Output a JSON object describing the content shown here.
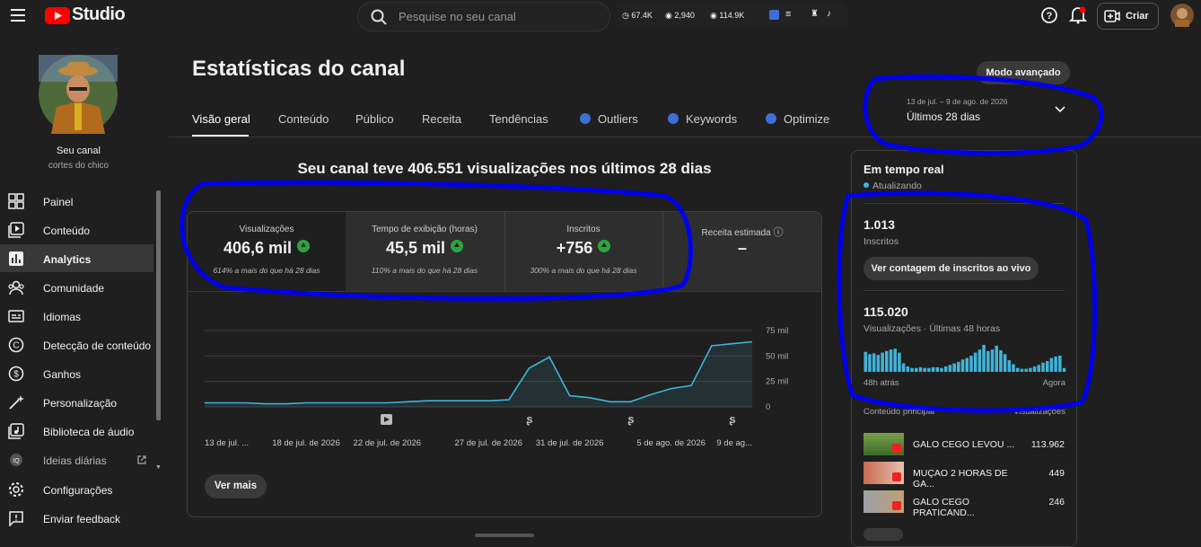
{
  "header": {
    "logo": "Studio",
    "search_placeholder": "Pesquise no seu canal",
    "stats": [
      "67.4K",
      "2,940",
      "114.9K"
    ],
    "create": "Criar"
  },
  "sidebar": {
    "channel_name": "Seu canal",
    "channel_handle": "cortes do chico",
    "items": [
      "Painel",
      "Conteúdo",
      "Analytics",
      "Comunidade",
      "Idiomas",
      "Detecção de conteúdo",
      "Ganhos",
      "Personalização",
      "Biblioteca de áudio",
      "Ideias diárias",
      "Configurações",
      "Enviar feedback"
    ]
  },
  "page": {
    "title": "Estatísticas do canal",
    "advanced_mode": "Modo avançado",
    "tabs": [
      "Visão geral",
      "Conteúdo",
      "Público",
      "Receita",
      "Tendências",
      "Outliers",
      "Keywords",
      "Optimize"
    ],
    "date_range": "13 de jul. – 9 de ago. de 2026",
    "period": "Últimos 28 dias"
  },
  "overview": {
    "headline": "Seu canal teve 406.551 visualizações nos últimos 28 dias",
    "cards": [
      {
        "label": "Visualizações",
        "value": "406,6 mil",
        "note": "614% a mais do que há 28 dias"
      },
      {
        "label": "Tempo de exibição (horas)",
        "value": "45,5 mil",
        "note": "110% a mais do que há 28 dias"
      },
      {
        "label": "Inscritos",
        "value": "+756",
        "note": "300% a mais do que há 28 dias"
      },
      {
        "label": "Receita estimada",
        "value": "–"
      }
    ],
    "chart": {
      "type": "line",
      "categories": [
        "13 de jul. ...",
        null,
        null,
        null,
        null,
        "18 de jul. de 2026",
        null,
        null,
        null,
        "22 de jul. de 2026",
        null,
        null,
        null,
        null,
        "27 de jul. de 2026",
        null,
        null,
        null,
        "31 de jul. de 2026",
        null,
        null,
        null,
        null,
        "5 de ago. de 2026",
        null,
        null,
        null,
        "9 de ag..."
      ],
      "values": [
        4000,
        4000,
        4000,
        3000,
        3000,
        4000,
        4000,
        4000,
        4000,
        4000,
        5000,
        6000,
        6000,
        6000,
        6000,
        7000,
        38000,
        49000,
        11000,
        9000,
        5000,
        5000,
        12000,
        18000,
        21000,
        60000,
        62000,
        64000
      ],
      "color": "#41b4d9",
      "ylim": [
        0,
        75000
      ],
      "yticks": [
        0,
        {
          "value": 25000,
          "label": "25 mil"
        },
        {
          "value": 50000,
          "label": "50 mil"
        },
        {
          "value": 75000,
          "label": "75 mil"
        }
      ],
      "grid": true
    },
    "see_more": "Ver mais"
  },
  "realtime": {
    "title": "Em tempo real",
    "status": "Atualizando",
    "subscribers": "1.013",
    "subscribers_label": "Inscritos",
    "live_button": "Ver contagem de inscritos ao vivo",
    "views": "115.020",
    "views_label": "Visualizações · Últimas 48 horas",
    "bars": {
      "type": "bar",
      "color": "#41b4d9",
      "values": [
        2600,
        2300,
        2400,
        2200,
        2500,
        2700,
        2900,
        3000,
        2500,
        1100,
        700,
        500,
        500,
        600,
        500,
        500,
        600,
        600,
        500,
        700,
        900,
        1100,
        1300,
        1600,
        1800,
        2100,
        2500,
        2900,
        3500,
        2700,
        2900,
        3400,
        2800,
        2300,
        1500,
        1000,
        500,
        400,
        400,
        500,
        700,
        900,
        1200,
        1400,
        1800,
        2000,
        2100,
        500
      ]
    },
    "start_label": "48h atrás",
    "end_label": "Agora",
    "top_content_label": "Conteúdo principal",
    "top_content_metric": "Visualizações",
    "top_content": [
      {
        "title": "GALO CEGO LEVOU ...",
        "views": "113.962"
      },
      {
        "title": "MUÇAO 2 HORAS DE GA...",
        "views": "449"
      },
      {
        "title": "GALO CEGO PRATICAND...",
        "views": "246"
      }
    ]
  }
}
